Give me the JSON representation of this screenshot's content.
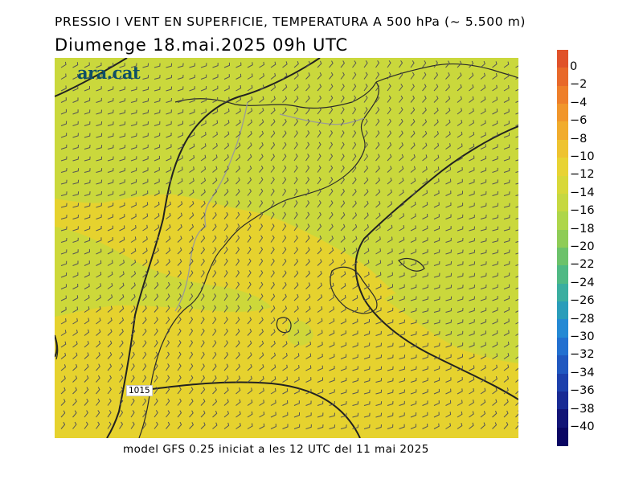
{
  "header": {
    "title": "PRESSIO I VENT EN SUPERFICIE, TEMPERATURA A 500 hPa (~ 5.500 m)",
    "subtitle": "Diumenge  18.mai.2025 09h UTC"
  },
  "logo": {
    "text": "ara.cat"
  },
  "map": {
    "isobar_label": "1015",
    "colors": {
      "base": "#e6d22e",
      "green_zone": "#cad83c",
      "light_green": "#c2d646",
      "isobar": "#222222",
      "coast": "#2a2a2a",
      "border": "#9a9a9a",
      "barb": "#555555"
    }
  },
  "scale": {
    "labels": [
      "0",
      "−2",
      "−4",
      "−6",
      "−8",
      "−10",
      "−12",
      "−14",
      "−16",
      "−18",
      "−20",
      "−22",
      "−24",
      "−26",
      "−28",
      "−30",
      "−32",
      "−34",
      "−36",
      "−38",
      "−40"
    ],
    "colors": [
      "#e0522a",
      "#e8692a",
      "#ee7f2a",
      "#f1962b",
      "#f1ac2d",
      "#eec330",
      "#e8d333",
      "#d8d838",
      "#c6d840",
      "#aed64a",
      "#8ecc56",
      "#6cc26a",
      "#4fb984",
      "#3aaea0",
      "#2a9dba",
      "#2489d4",
      "#2270d0",
      "#2058c0",
      "#1c40ac",
      "#182a94",
      "#121477",
      "#0a0663"
    ]
  },
  "footer": {
    "text": "model GFS 0.25 iniciat a les 12 UTC del 11 mai 2025"
  }
}
